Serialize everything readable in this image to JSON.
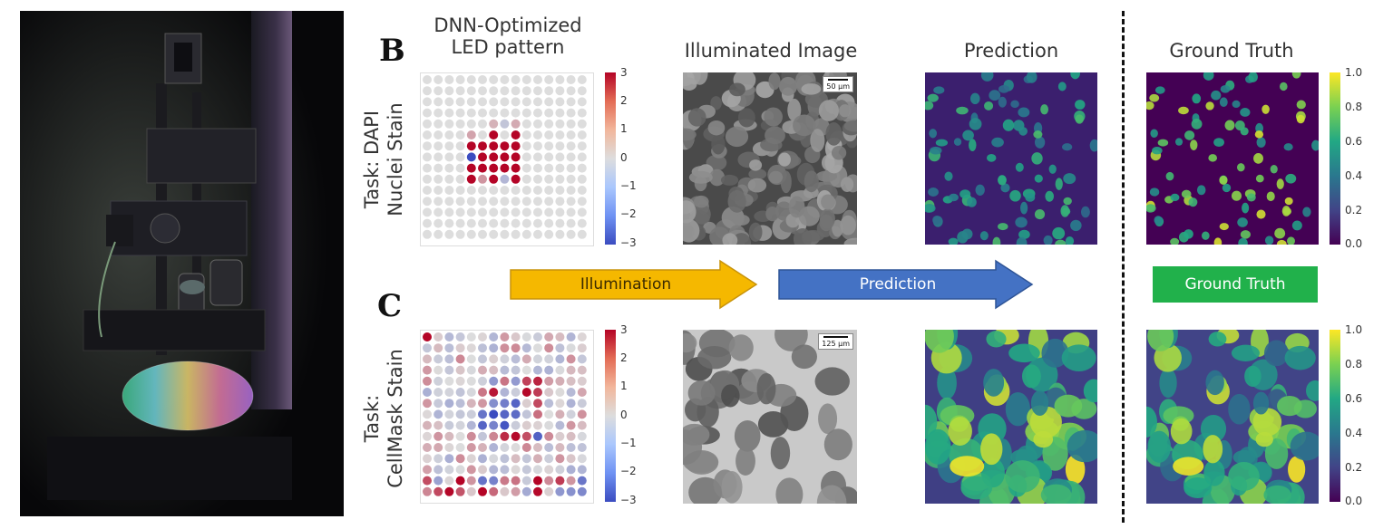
{
  "headers": {
    "led_pattern": [
      "DNN-Optimized",
      "LED pattern"
    ],
    "illuminated": "Illuminated Image",
    "prediction": "Prediction",
    "ground_truth": "Ground Truth"
  },
  "panels": {
    "B": {
      "letter": "B",
      "task_label": [
        "Task: DAPI",
        "Nuclei Stain"
      ],
      "scale_bar": "50 μm",
      "led_colorbar_ticks": [
        "3",
        "2",
        "1",
        "0",
        "−1",
        "−2",
        "−3"
      ],
      "gt_colorbar_ticks": [
        "1.0",
        "0.8",
        "0.6",
        "0.4",
        "0.2",
        "0.0"
      ]
    },
    "C": {
      "letter": "C",
      "task_label": [
        "Task:",
        "CellMask Stain"
      ],
      "scale_bar": "125 μm",
      "led_colorbar_ticks": [
        "3",
        "2",
        "1",
        "0",
        "−1",
        "−2",
        "−3"
      ],
      "gt_colorbar_ticks": [
        "1.0",
        "0.8",
        "0.6",
        "0.4",
        "0.2",
        "0.0"
      ]
    }
  },
  "legend": {
    "illumination": "Illumination",
    "prediction": "Prediction",
    "ground_truth": "Ground Truth"
  },
  "colors": {
    "illumination_arrow": "#f5b800",
    "prediction_arrow": "#4472c4",
    "ground_truth_box": "#21b14b",
    "led_positive": "#c0282b",
    "led_negative": "#3b4cc0",
    "led_neutral": "#dddddd"
  }
}
